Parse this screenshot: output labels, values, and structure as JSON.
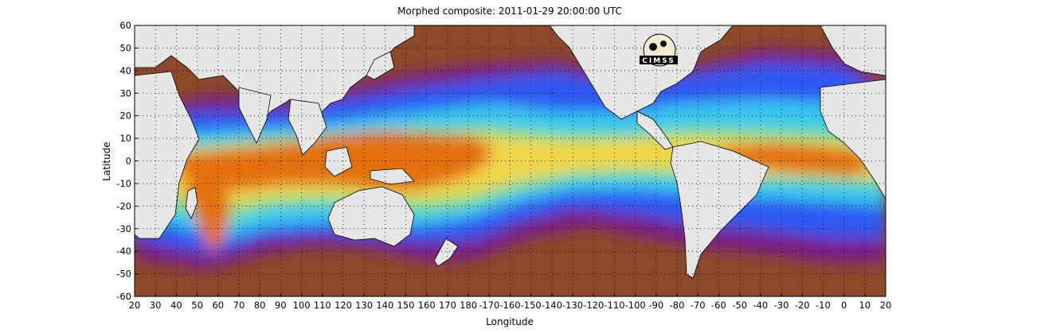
{
  "title": "Morphed composite: 2011-01-29 20:00:00 UTC",
  "xlabel": "Longitude",
  "ylabel": "Latitude",
  "logo_text": "CIMSS",
  "x_ticks": [
    "20",
    "30",
    "40",
    "50",
    "60",
    "70",
    "80",
    "90",
    "100",
    "110",
    "120",
    "130",
    "140",
    "150",
    "160",
    "170",
    "180",
    "-170",
    "-160",
    "-150",
    "-140",
    "-130",
    "-120",
    "-110",
    "-100",
    "-90",
    "-80",
    "-70",
    "-60",
    "-50",
    "-40",
    "-30",
    "-20",
    "-10",
    "0",
    "10",
    "20"
  ],
  "y_ticks": [
    "60",
    "50",
    "40",
    "30",
    "20",
    "10",
    "0",
    "-10",
    "-20",
    "-30",
    "-40",
    "-50",
    "-60"
  ],
  "colors": {
    "dry": "#8c4a2a",
    "purple": "#7a1f8c",
    "blue": "#2d59f2",
    "cyan": "#39c6f0",
    "green": "#7de08a",
    "yellow": "#f0d648",
    "orange": "#e36f0f",
    "land": "#e6e6e6"
  },
  "grid": "dotted"
}
